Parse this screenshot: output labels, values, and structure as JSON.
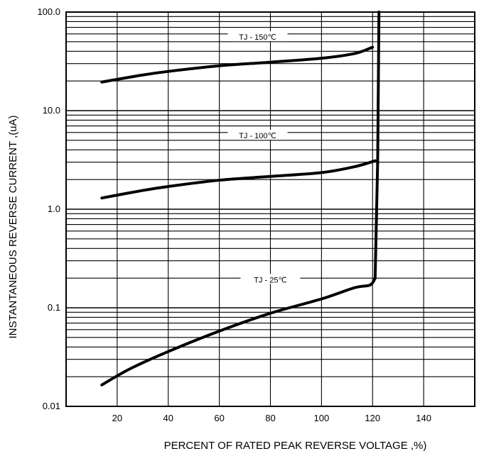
{
  "chart_data": {
    "type": "line",
    "xlabel": "PERCENT OF RATED PEAK REVERSE VOLTAGE ,%)",
    "ylabel": "INSTANTANEOUS REVERSE CURRENT ,(uA)",
    "x_scale": "linear",
    "y_scale": "log",
    "xlim": [
      0,
      160
    ],
    "ylim": [
      0.01,
      100
    ],
    "x_ticks": [
      "20",
      "40",
      "60",
      "80",
      "100",
      "120",
      "140"
    ],
    "y_ticks": [
      "0.01",
      "0.1",
      "1.0",
      "10.0",
      "100.0"
    ],
    "grid": true,
    "series": [
      {
        "name": "TJ = 150℃",
        "x": [
          14,
          30,
          40,
          60,
          80,
          100,
          113,
          120
        ],
        "y": [
          19.5,
          23,
          25,
          28.5,
          31,
          34,
          38,
          44
        ]
      },
      {
        "name": "TJ = 100℃",
        "x": [
          14,
          30,
          40,
          60,
          80,
          100,
          113,
          121
        ],
        "y": [
          1.3,
          1.55,
          1.7,
          1.97,
          2.15,
          2.35,
          2.7,
          3.1
        ]
      },
      {
        "name": "TJ = 25℃",
        "x": [
          14,
          25,
          40,
          60,
          80,
          100,
          113,
          119,
          121
        ],
        "y": [
          0.0165,
          0.024,
          0.036,
          0.058,
          0.088,
          0.123,
          0.16,
          0.17,
          0.2
        ]
      },
      {
        "name": "",
        "x": [
          121,
          122,
          122.5
        ],
        "y": [
          0.2,
          3.1,
          100
        ]
      }
    ],
    "labels": [
      "TJ - 150℃",
      "TJ - 100℃",
      "TJ - 25℃"
    ]
  }
}
